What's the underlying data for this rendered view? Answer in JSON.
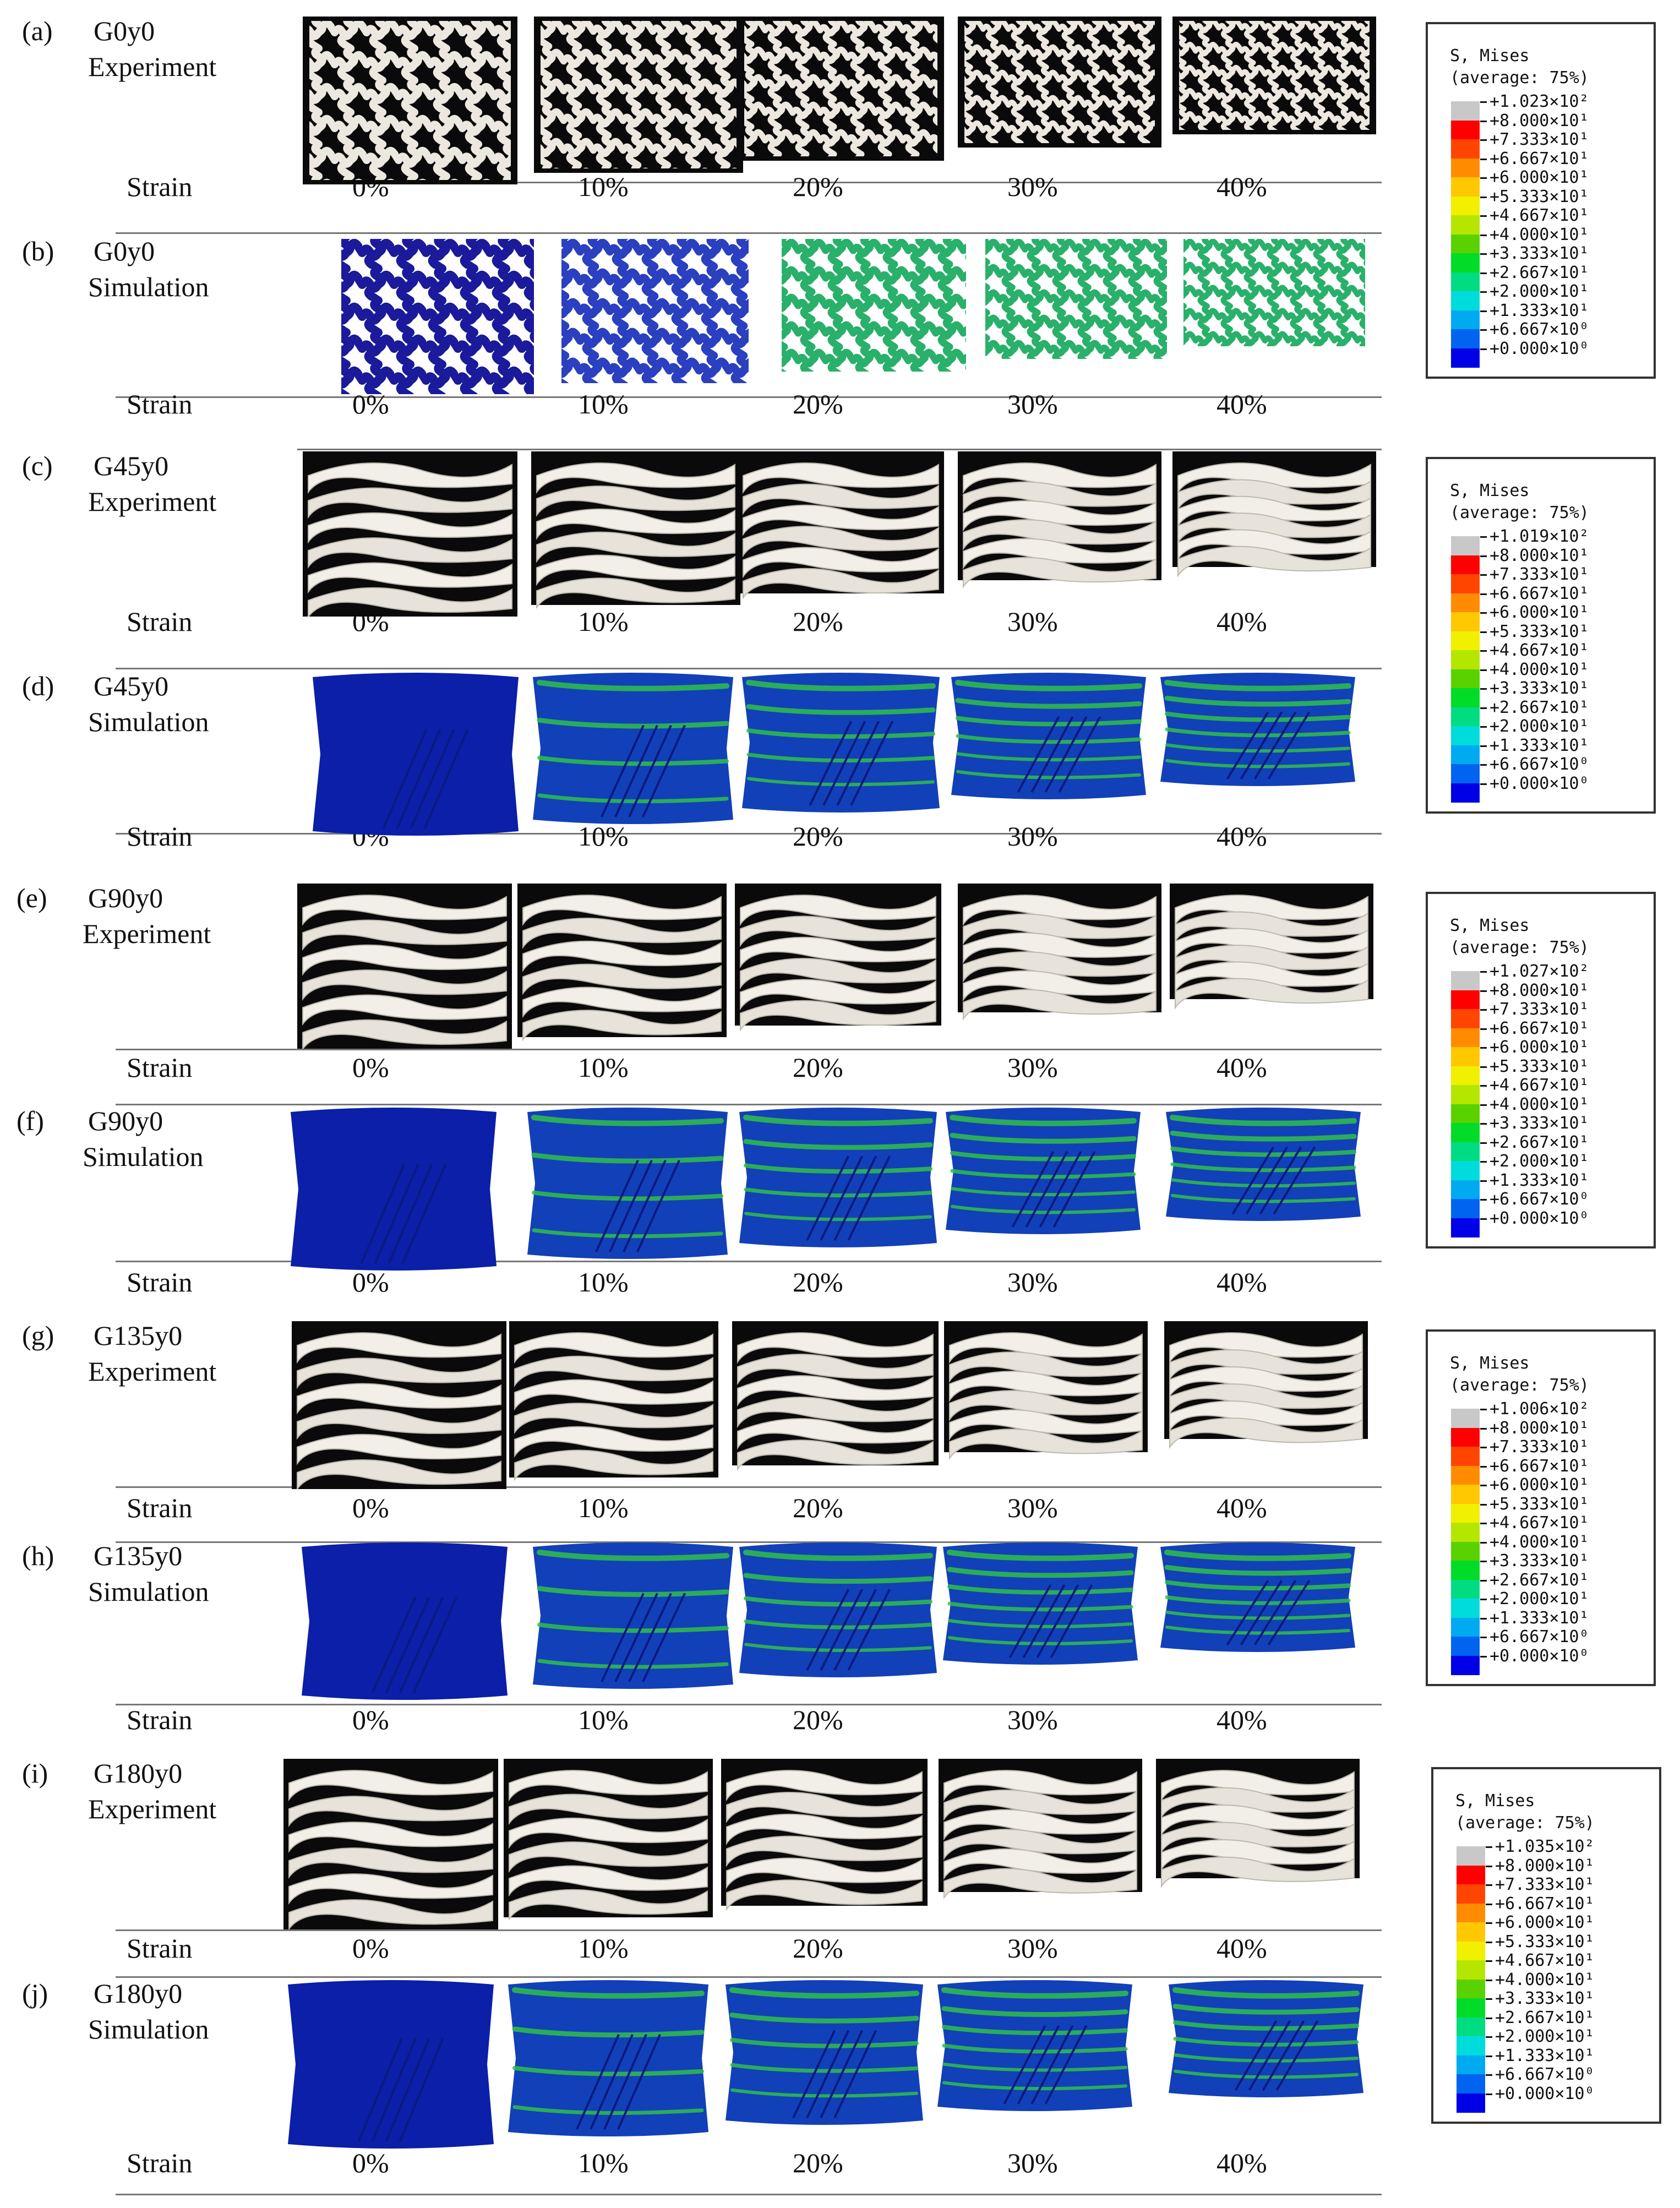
{
  "strain_axis_label": "Strain",
  "strains": [
    "0%",
    "10%",
    "20%",
    "30%",
    "40%"
  ],
  "rows": [
    {
      "id": "a",
      "tag": "(a)",
      "name": "G0y0",
      "kind": "Experiment"
    },
    {
      "id": "b",
      "tag": "(b)",
      "name": "G0y0",
      "kind": "Simulation"
    },
    {
      "id": "c",
      "tag": "(c)",
      "name": "G45y0",
      "kind": "Experiment"
    },
    {
      "id": "d",
      "tag": "(d)",
      "name": "G45y0",
      "kind": "Simulation"
    },
    {
      "id": "e",
      "tag": "(e)",
      "name": "G90y0",
      "kind": "Experiment"
    },
    {
      "id": "f",
      "tag": "(f)",
      "name": "G90y0",
      "kind": "Simulation"
    },
    {
      "id": "g",
      "tag": "(g)",
      "name": "G135y0",
      "kind": "Experiment"
    },
    {
      "id": "h",
      "tag": "(h)",
      "name": "G135y0",
      "kind": "Simulation"
    },
    {
      "id": "i",
      "tag": "(i)",
      "name": "G180y0",
      "kind": "Experiment"
    },
    {
      "id": "j",
      "tag": "(j)",
      "name": "G180y0",
      "kind": "Simulation"
    }
  ],
  "legend_common": {
    "title": "S, Mises",
    "subtitle": "(average: 75%)",
    "levels": [
      "+8.000×10¹",
      "+7.333×10¹",
      "+6.667×10¹",
      "+6.000×10¹",
      "+5.333×10¹",
      "+4.667×10¹",
      "+4.000×10¹",
      "+3.333×10¹",
      "+2.667×10¹",
      "+2.000×10¹",
      "+1.333×10¹",
      "+6.667×10⁰",
      "+0.000×10⁰"
    ],
    "colors": [
      "#c8c8c8",
      "#ff0000",
      "#ff4500",
      "#ff8c00",
      "#ffc800",
      "#f0f000",
      "#b4e600",
      "#5ad200",
      "#00dc28",
      "#00dc82",
      "#00dcdc",
      "#00aaf0",
      "#0064f0",
      "#0000e6"
    ]
  },
  "legends": [
    {
      "max": "+1.023×10²"
    },
    {
      "max": "+1.019×10²"
    },
    {
      "max": "+1.027×10²"
    },
    {
      "max": "+1.006×10²"
    },
    {
      "max": "+1.035×10²"
    }
  ]
}
